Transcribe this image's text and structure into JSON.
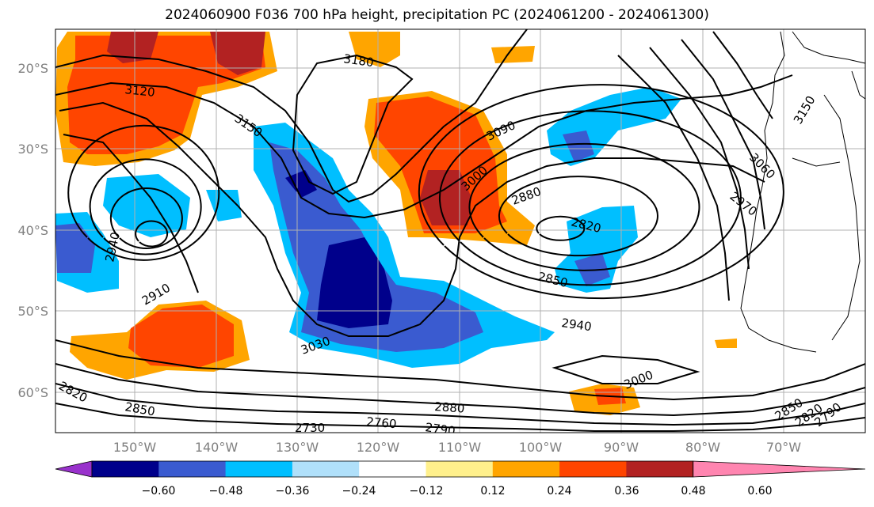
{
  "title": "2024060900 F036 700 hPa height, precipitation PC (2024061200 - 2024061300)",
  "map": {
    "lat_ticks": [
      "20°S",
      "30°S",
      "40°S",
      "50°S",
      "60°S"
    ],
    "lon_ticks": [
      "150°W",
      "140°W",
      "130°W",
      "120°W",
      "110°W",
      "100°W",
      "90°W",
      "80°W",
      "70°W"
    ],
    "gridlines": true,
    "contour_labels": [
      "3180",
      "3120",
      "3150",
      "3090",
      "3000",
      "2880",
      "2820",
      "2970",
      "3060",
      "3150",
      "2940",
      "2910",
      "2850",
      "2940",
      "3030",
      "3000",
      "2820",
      "2850",
      "2880",
      "2760",
      "2790",
      "2730",
      "2850",
      "2820",
      "2790"
    ]
  },
  "colorbar": {
    "ticks": [
      "−0.60",
      "−0.48",
      "−0.36",
      "−0.24",
      "−0.12",
      "0.12",
      "0.24",
      "0.36",
      "0.48",
      "0.60"
    ],
    "colors": [
      "#9932cc",
      "#00008b",
      "#3a5bd0",
      "#00bfff",
      "#b0e0fa",
      "#ffffff",
      "#fff08c",
      "#ffa500",
      "#ff4500",
      "#b22222",
      "#ff85b0"
    ]
  }
}
